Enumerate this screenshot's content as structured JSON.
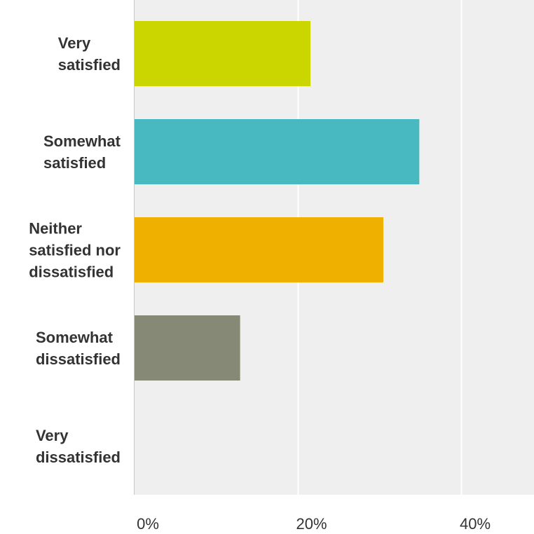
{
  "chart_data": {
    "type": "bar",
    "orientation": "horizontal",
    "title": "",
    "xlabel": "",
    "ylabel": "",
    "categories": [
      [
        "Very",
        "satisfied"
      ],
      [
        "Somewhat",
        "satisfied"
      ],
      [
        "Neither",
        "satisfied nor",
        "dissatisfied"
      ],
      [
        "Somewhat",
        "dissatisfied"
      ],
      [
        "Very",
        "dissatisfied"
      ]
    ],
    "values": [
      21.5,
      34.8,
      30.4,
      12.9,
      0
    ],
    "unit": "%",
    "xlim": [
      0,
      48.9
    ],
    "ticks": [
      0,
      20,
      40
    ],
    "tick_labels": [
      "0%",
      "20%",
      "40%"
    ],
    "colors": [
      "#cbd600",
      "#48b9c1",
      "#efb000",
      "#868976",
      "#868976"
    ],
    "plot_background": "#efefef",
    "gridline_color": "#ffffff",
    "grid": true,
    "legend": "none"
  }
}
